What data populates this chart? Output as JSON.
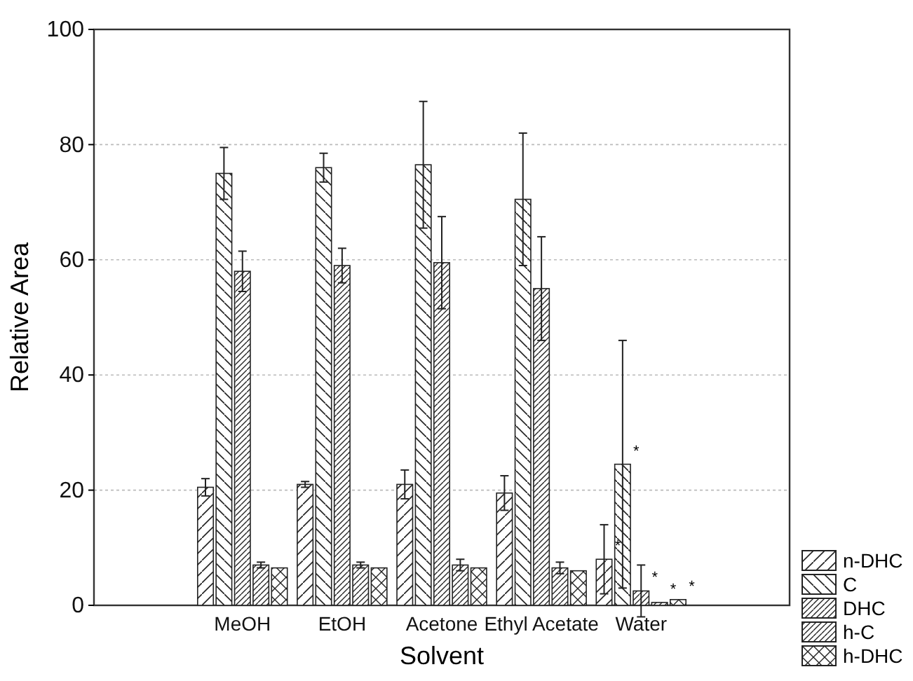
{
  "chart_data": {
    "type": "bar",
    "xlabel": "Solvent",
    "ylabel": "Relative Area",
    "categories": [
      "MeOH",
      "EtOH",
      "Acetone",
      "Ethyl Acetate",
      "Water"
    ],
    "ylim": [
      0,
      100
    ],
    "yticks": [
      0,
      20,
      40,
      60,
      80,
      100
    ],
    "grid": "y",
    "legend": "bottom right",
    "series": [
      {
        "name": "n-DHC",
        "color": "#222222",
        "values": [
          20.5,
          21,
          21,
          19.5,
          8
        ],
        "errors": [
          1.5,
          0.5,
          2.5,
          3,
          6
        ]
      },
      {
        "name": "C",
        "color": "#222222",
        "values": [
          75,
          76,
          76.5,
          70.5,
          24.5
        ],
        "errors": [
          4.5,
          2.5,
          11,
          11.5,
          21.5
        ]
      },
      {
        "name": "DHC",
        "color": "#222222",
        "values": [
          58,
          59,
          59.5,
          55,
          2.5
        ],
        "errors": [
          3.5,
          3,
          8,
          9,
          4.5
        ]
      },
      {
        "name": "h-C",
        "color": "#222222",
        "values": [
          7,
          7,
          7,
          6.5,
          0.5
        ],
        "errors": [
          0.5,
          0.5,
          1,
          1,
          null
        ]
      },
      {
        "name": "h-DHC",
        "color": "#222222",
        "values": [
          6.5,
          6.5,
          6.5,
          6,
          1
        ],
        "errors": [
          null,
          null,
          null,
          null,
          null
        ]
      }
    ],
    "annotations": [
      "*",
      "*",
      "*",
      "*",
      "*"
    ]
  }
}
